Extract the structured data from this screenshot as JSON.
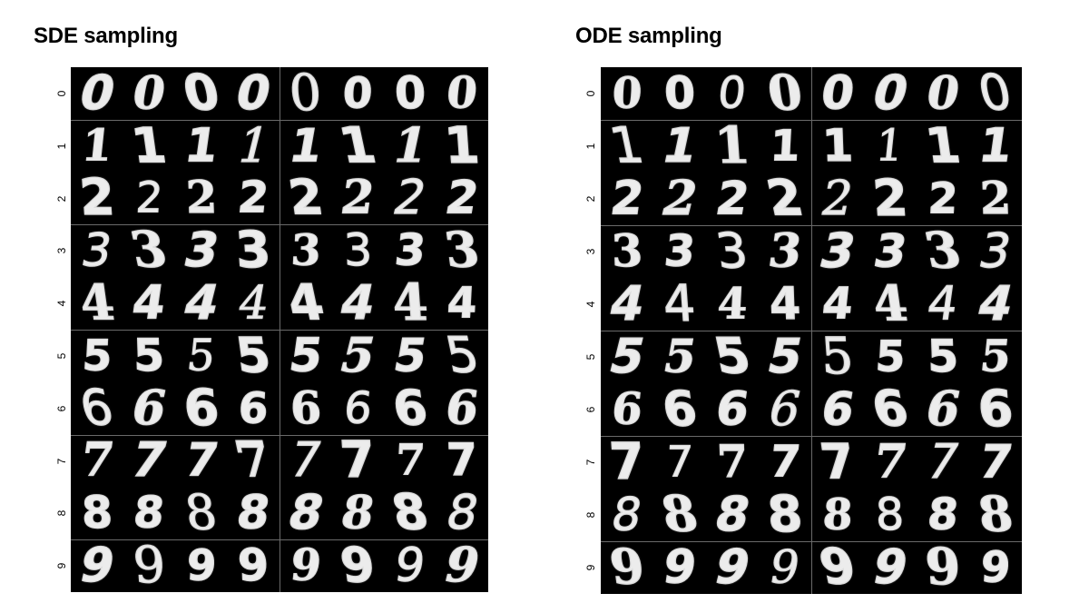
{
  "panels": [
    {
      "title": "SDE sampling",
      "row_labels": [
        "0",
        "1",
        "2",
        "3",
        "4",
        "5",
        "6",
        "7",
        "8",
        "9"
      ],
      "grid": [
        [
          "0",
          "0",
          "0",
          "0",
          "0",
          "0",
          "0",
          "0"
        ],
        [
          "1",
          "1",
          "1",
          "1",
          "1",
          "1",
          "1",
          "1"
        ],
        [
          "2",
          "2",
          "2",
          "2",
          "2",
          "2",
          "2",
          "2"
        ],
        [
          "3",
          "3",
          "3",
          "3",
          "3",
          "3",
          "3",
          "3"
        ],
        [
          "4",
          "4",
          "4",
          "4",
          "4",
          "4",
          "4",
          "4"
        ],
        [
          "5",
          "5",
          "5",
          "5",
          "5",
          "5",
          "5",
          "5"
        ],
        [
          "6",
          "6",
          "6",
          "6",
          "6",
          "6",
          "6",
          "6"
        ],
        [
          "7",
          "7",
          "7",
          "7",
          "7",
          "7",
          "7",
          "7"
        ],
        [
          "8",
          "8",
          "8",
          "8",
          "8",
          "8",
          "8",
          "8"
        ],
        [
          "9",
          "9",
          "9",
          "9",
          "9",
          "9",
          "9",
          "9"
        ]
      ]
    },
    {
      "title": "ODE sampling",
      "row_labels": [
        "0",
        "1",
        "2",
        "3",
        "4",
        "5",
        "6",
        "7",
        "8",
        "9"
      ],
      "grid": [
        [
          "0",
          "0",
          "0",
          "0",
          "0",
          "0",
          "0",
          "0"
        ],
        [
          "1",
          "1",
          "1",
          "1",
          "1",
          "1",
          "1",
          "1"
        ],
        [
          "2",
          "2",
          "2",
          "2",
          "2",
          "2",
          "2",
          "2"
        ],
        [
          "3",
          "3",
          "3",
          "3",
          "3",
          "3",
          "3",
          "3"
        ],
        [
          "4",
          "4",
          "4",
          "4",
          "4",
          "4",
          "4",
          "4"
        ],
        [
          "5",
          "5",
          "5",
          "5",
          "5",
          "5",
          "5",
          "5"
        ],
        [
          "6",
          "6",
          "6",
          "6",
          "6",
          "6",
          "6",
          "6"
        ],
        [
          "7",
          "7",
          "7",
          "7",
          "7",
          "7",
          "7",
          "7"
        ],
        [
          "8",
          "8",
          "8",
          "8",
          "8",
          "8",
          "8",
          "8"
        ],
        [
          "9",
          "9",
          "9",
          "9",
          "9",
          "9",
          "9",
          "9"
        ]
      ]
    }
  ],
  "colors": {
    "grid_background": "#000000",
    "digit_color": "#ececec",
    "title_color": "#000000"
  }
}
